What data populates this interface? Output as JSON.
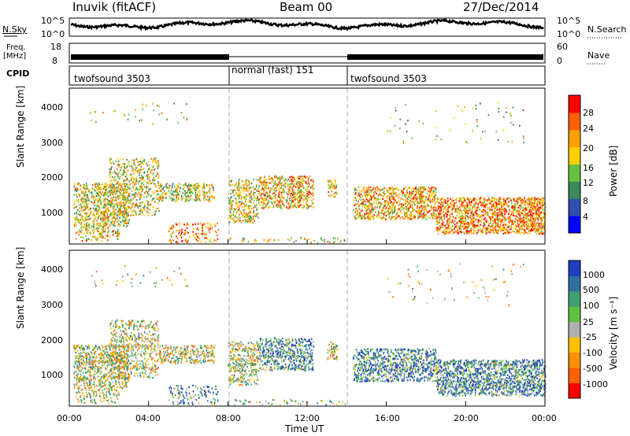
{
  "header": {
    "station": "Inuvik (fitACF)",
    "beam": "Beam 00",
    "date": "27/Dec/2014"
  },
  "strip_panels": {
    "nsky_label": "N.Sky",
    "nsky_ticks": [
      "10^5",
      "10^0"
    ],
    "nsearch_label": "N.Search",
    "nsearch_ticks": [
      "10^5",
      "10^0"
    ],
    "freq_label_1": "Freq.",
    "freq_label_2": "[MHz]",
    "freq_ticks": [
      "18",
      "8"
    ],
    "nave_label": "Nave",
    "nave_ticks": [
      "60",
      "0"
    ],
    "cpid_label": "CPID",
    "cpid_segments": [
      {
        "label": "twofsound 3503",
        "start_h": 0,
        "end_h": 8
      },
      {
        "label": "normal (fast) 151",
        "start_h": 8,
        "end_h": 14
      },
      {
        "label": "twofsound 3503",
        "start_h": 14,
        "end_h": 24
      }
    ]
  },
  "chart_data": [
    {
      "type": "heatmap",
      "name": "power-panel",
      "ylabel": "Slant Range [km]",
      "yticks": [
        "1000",
        "2000",
        "3000",
        "4000"
      ],
      "ylim": [
        200,
        4500
      ],
      "xlim_hours": [
        0,
        24
      ],
      "xticks": [
        "00:00",
        "04:00",
        "08:00",
        "12:00",
        "16:00",
        "20:00",
        "00:00"
      ],
      "colorbar_label": "Power [dB]",
      "colorbar_ticks": [
        "4",
        "8",
        "12",
        "16",
        "20",
        "24",
        "28"
      ],
      "colors": [
        "#0000ff",
        "#3050b0",
        "#3a8a5a",
        "#66c040",
        "#ffd000",
        "#ffa000",
        "#ff6000",
        "#ff0000"
      ]
    },
    {
      "type": "heatmap",
      "name": "velocity-panel",
      "ylabel": "Slant Range [km]",
      "yticks": [
        "1000",
        "2000",
        "3000",
        "4000"
      ],
      "ylim": [
        200,
        4500
      ],
      "xlim_hours": [
        0,
        24
      ],
      "xticks": [
        "00:00",
        "04:00",
        "08:00",
        "12:00",
        "16:00",
        "20:00",
        "00:00"
      ],
      "xlabel": "Time UT",
      "colorbar_label": "Velocity [m s⁻¹]",
      "colorbar_ticks": [
        "1000",
        "500",
        "100",
        "25",
        "-25",
        "-100",
        "-500",
        "-1000"
      ],
      "colors": [
        "#2040c0",
        "#3070a0",
        "#40a070",
        "#60c040",
        "#b0b0b0",
        "#ffc000",
        "#ff9000",
        "#ff6000",
        "#ff0000"
      ]
    }
  ]
}
